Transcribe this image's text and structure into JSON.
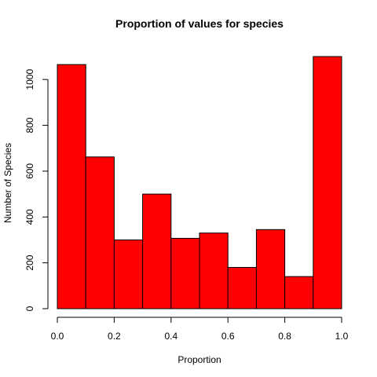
{
  "chart_data": {
    "type": "bar",
    "title": "Proportion of values for species",
    "xlabel": "Proportion",
    "ylabel": "Number of Species",
    "bins": [
      {
        "x0": 0.0,
        "x1": 0.1,
        "value": 1065
      },
      {
        "x0": 0.1,
        "x1": 0.2,
        "value": 662
      },
      {
        "x0": 0.2,
        "x1": 0.3,
        "value": 300
      },
      {
        "x0": 0.3,
        "x1": 0.4,
        "value": 500
      },
      {
        "x0": 0.4,
        "x1": 0.5,
        "value": 307
      },
      {
        "x0": 0.5,
        "x1": 0.6,
        "value": 330
      },
      {
        "x0": 0.6,
        "x1": 0.7,
        "value": 180
      },
      {
        "x0": 0.7,
        "x1": 0.8,
        "value": 345
      },
      {
        "x0": 0.8,
        "x1": 0.9,
        "value": 140
      },
      {
        "x0": 0.9,
        "x1": 1.0,
        "value": 1100
      }
    ],
    "xlim": [
      0.0,
      1.0
    ],
    "ylim": [
      0,
      1100
    ],
    "x_ticks": [
      0.0,
      0.2,
      0.4,
      0.6,
      0.8,
      1.0
    ],
    "x_tick_labels": [
      "0.0",
      "0.2",
      "0.4",
      "0.6",
      "0.8",
      "1.0"
    ],
    "y_ticks": [
      0,
      200,
      400,
      600,
      800,
      1000
    ],
    "y_tick_labels": [
      "0",
      "200",
      "400",
      "600",
      "800",
      "1000"
    ],
    "bar_color": "#ff0000",
    "bar_edge_color": "#000000",
    "grid": false,
    "legend": "none"
  }
}
